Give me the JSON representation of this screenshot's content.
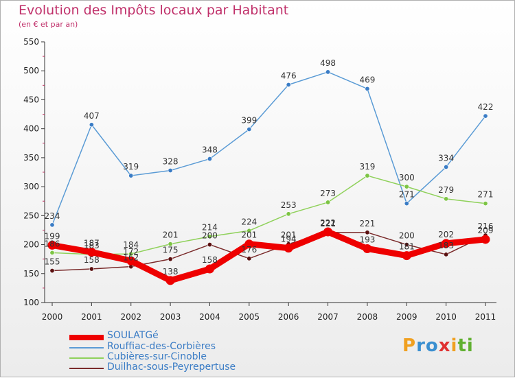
{
  "chart_data": {
    "type": "line",
    "title": "Evolution des Impôts locaux par Habitant",
    "subtitle": "(en € et par an)",
    "categories": [
      "2000",
      "2001",
      "2002",
      "2003",
      "2004",
      "2005",
      "2006",
      "2007",
      "2008",
      "2009",
      "2010",
      "2011"
    ],
    "ylim": [
      100,
      550
    ],
    "yticks": [
      100,
      150,
      200,
      250,
      300,
      350,
      400,
      450,
      500,
      550
    ],
    "grid": false,
    "legend_position": "bottom-left",
    "series": [
      {
        "name": "Rouffiac-des-Corbières",
        "color": "#5a9bd5",
        "point": "#3a7cc5",
        "values": [
          234,
          407,
          319,
          328,
          348,
          399,
          476,
          498,
          469,
          271,
          334,
          422
        ]
      },
      {
        "name": "Cubières-sur-Cinoble",
        "color": "#8fd15a",
        "point": "#7cc444",
        "values": [
          186,
          183,
          184,
          201,
          214,
          224,
          253,
          273,
          319,
          300,
          279,
          271
        ]
      },
      {
        "name": "Duilhac-sous-Peyrepertuse",
        "color": "#7a2a2a",
        "point": "#5a1010",
        "values": [
          155,
          158,
          162,
          175,
          200,
          176,
          201,
          221,
          221,
          200,
          183,
          216
        ]
      },
      {
        "name": "SOULATGé",
        "color": "#ee0000",
        "point": "#ee0000",
        "values": [
          199,
          187,
          172,
          138,
          158,
          201,
          194,
          222,
          193,
          181,
          202,
          209
        ]
      }
    ]
  },
  "legend": [
    {
      "label": "SOULATGé",
      "color": "#ee0000"
    },
    {
      "label": "Rouffiac-des-Corbières",
      "color": "#5a9bd5"
    },
    {
      "label": "Cubières-sur-Cinoble",
      "color": "#8fd15a"
    },
    {
      "label": "Duilhac-sous-Peyrepertuse",
      "color": "#7a2a2a"
    }
  ],
  "logo": {
    "text": "Proxiti"
  }
}
